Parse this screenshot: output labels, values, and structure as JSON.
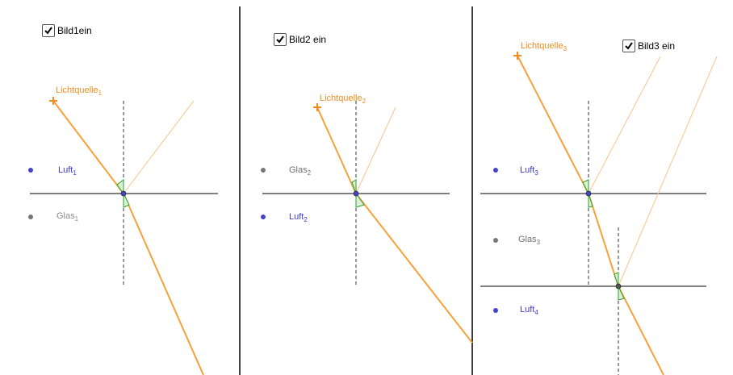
{
  "panels": [
    {
      "checkbox": {
        "label": "Bild1ein",
        "checked": true
      },
      "source": {
        "name": "Lichtquelle",
        "sub": "1"
      },
      "media": [
        {
          "name": "Luft",
          "sub": "1",
          "color": "#3a3ad0"
        },
        {
          "name": "Glas",
          "sub": "1",
          "color": "#8a8a8a"
        }
      ]
    },
    {
      "checkbox": {
        "label": "Bild2 ein",
        "checked": true
      },
      "source": {
        "name": "Lichtquelle",
        "sub": "2"
      },
      "media": [
        {
          "name": "Glas",
          "sub": "2",
          "color": "#707070"
        },
        {
          "name": "Luft",
          "sub": "2",
          "color": "#3a3ad0"
        }
      ]
    },
    {
      "checkbox": {
        "label": "Bild3 ein",
        "checked": true
      },
      "source": {
        "name": "Lichtquelle",
        "sub": "3"
      },
      "media": [
        {
          "name": "Luft",
          "sub": "3",
          "color": "#3a3ad0"
        },
        {
          "name": "Glas",
          "sub": "3",
          "color": "#707070"
        },
        {
          "name": "Luft",
          "sub": "4",
          "color": "#3a3ad0"
        }
      ]
    }
  ],
  "colors": {
    "ray": "#f7a13a",
    "reflected": "#f9c48a",
    "normal": "#333333",
    "angle": "#2aa02a",
    "point": "#4444cc"
  }
}
